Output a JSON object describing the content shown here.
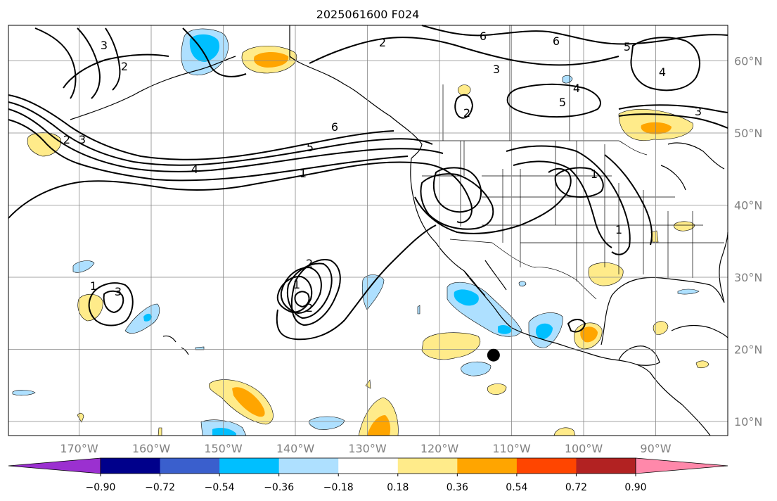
{
  "title": "2025061600 F024",
  "lon_labels": [
    "170°W",
    "160°W",
    "150°W",
    "140°W",
    "130°W",
    "120°W",
    "110°W",
    "100°W",
    "90°W"
  ],
  "lat_labels": [
    "60°N",
    "50°N",
    "40°N",
    "30°N",
    "20°N",
    "10°N"
  ],
  "colorbar": {
    "ticks": [
      "−0.90",
      "−0.72",
      "−0.54",
      "−0.36",
      "−0.18",
      "0.18",
      "0.36",
      "0.54",
      "0.72",
      "0.90"
    ],
    "colors": [
      "#9b30d0",
      "#00008b",
      "#3a5fcd",
      "#00bfff",
      "#aee0ff",
      "#ffffff",
      "#ffeb8a",
      "#ffa500",
      "#ff4500",
      "#b22222",
      "#ff88aa"
    ]
  },
  "contour_labels": [
    "2",
    "6",
    "6",
    "5",
    "3",
    "4",
    "4",
    "5",
    "2",
    "3",
    "2",
    "3",
    "6",
    "5",
    "4",
    "1",
    "2",
    "1",
    "3",
    "1",
    "3",
    "2",
    "1",
    "2",
    "1"
  ],
  "marker": {
    "label": "storm-center",
    "lon": -112.5,
    "lat": 19.2
  }
}
